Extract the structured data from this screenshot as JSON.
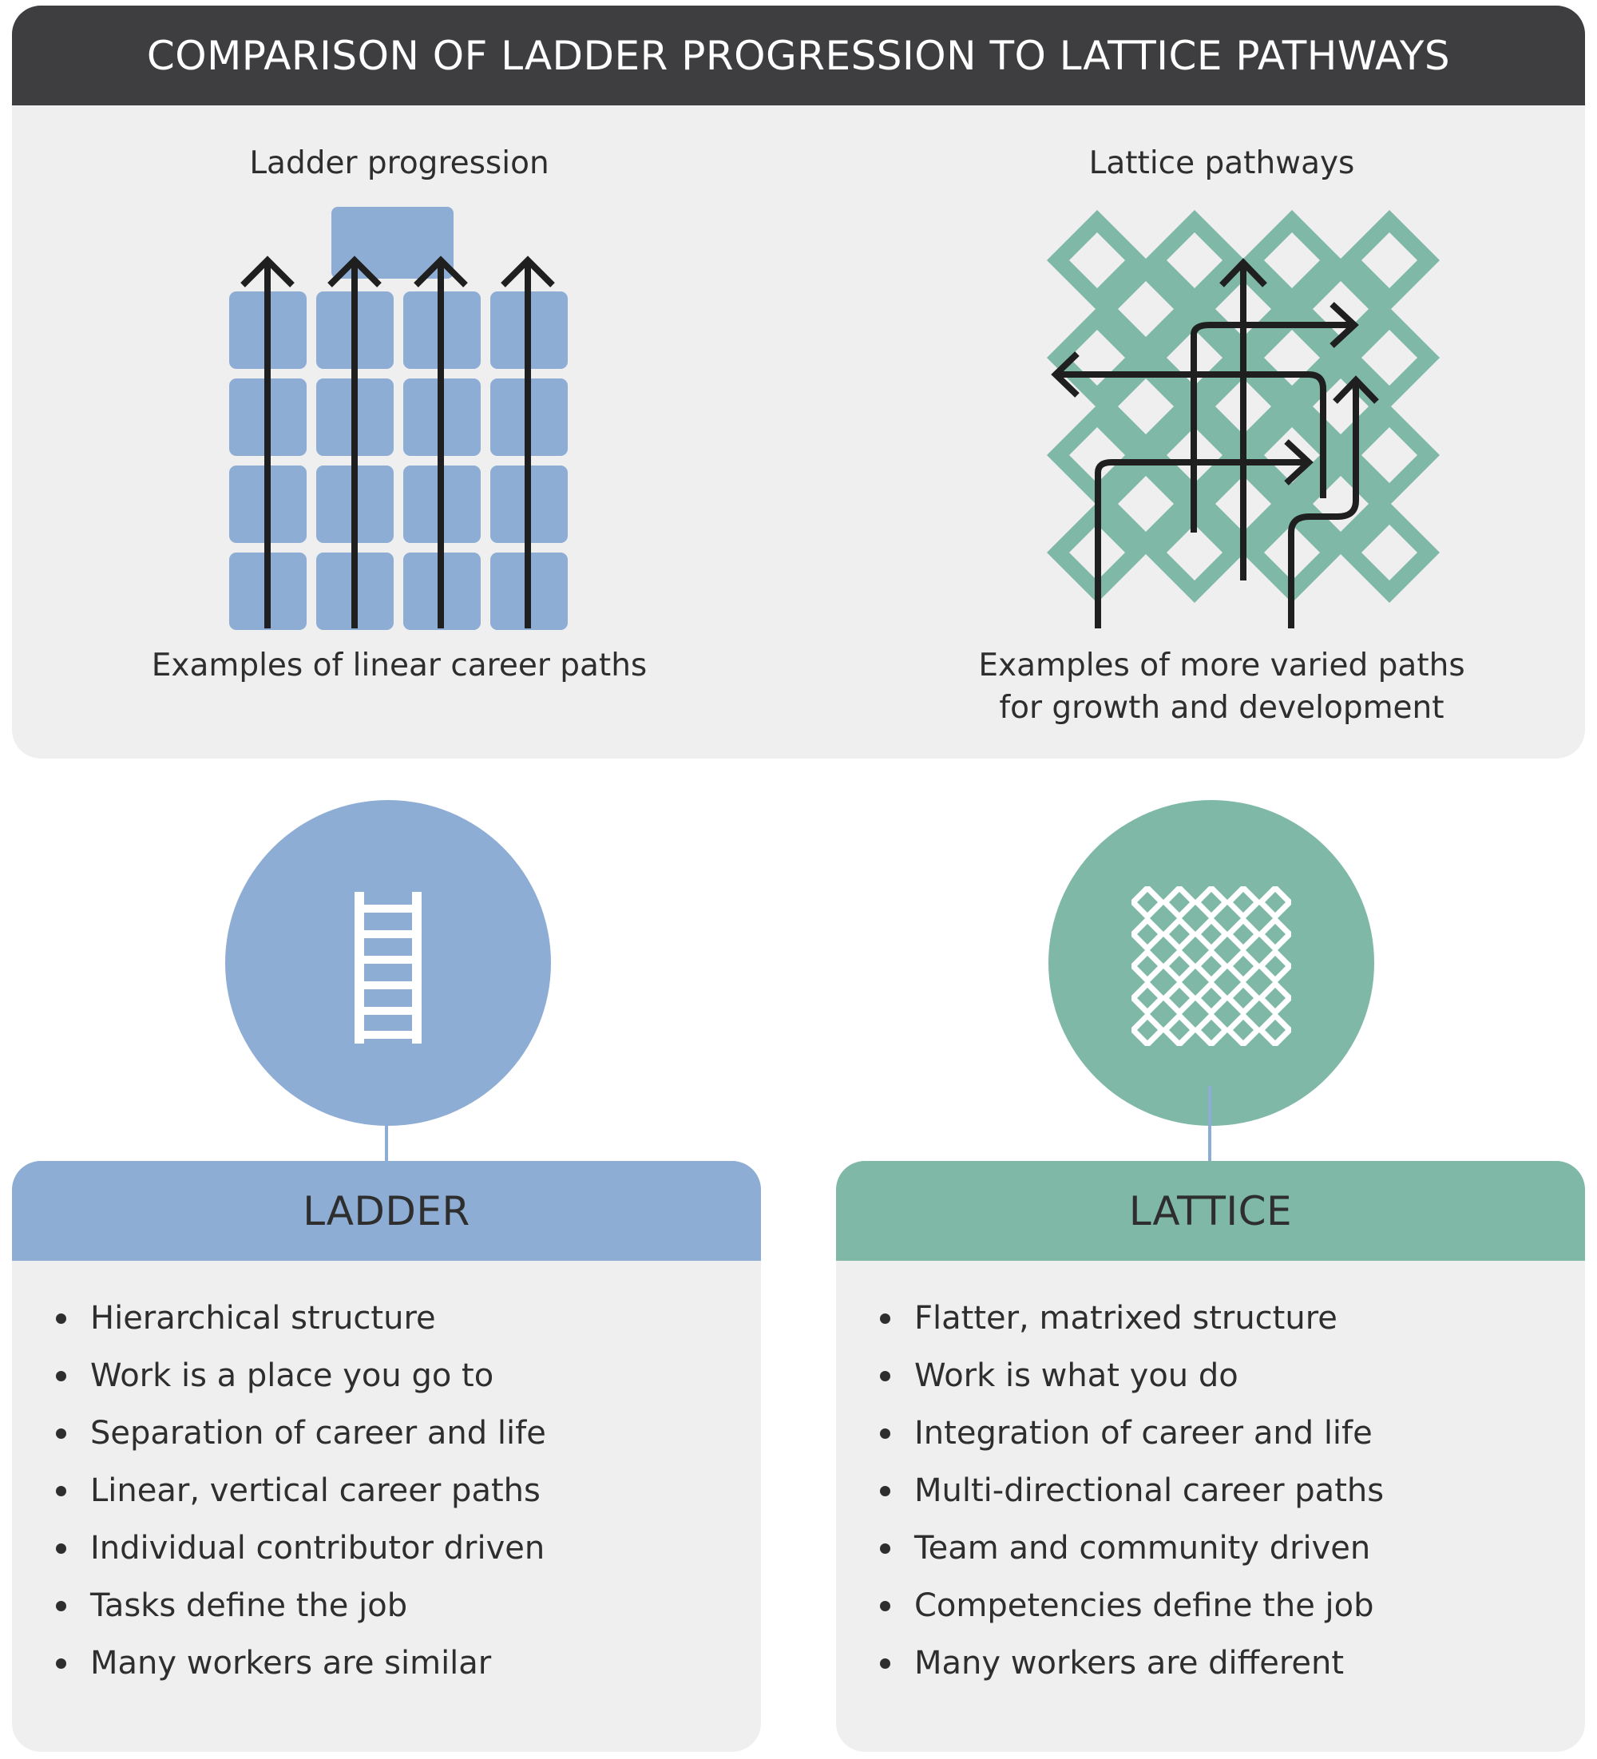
{
  "title": "COMPARISON OF LADDER PROGRESSION TO LATTICE PATHWAYS",
  "colors": {
    "ladder_blue": "#8dadd4",
    "lattice_green": "#7fb8a7",
    "title_bar": "#3e3e40",
    "panel_bg": "#efefef",
    "arrow": "#1f1f1f"
  },
  "ladder_diagram": {
    "heading": "Ladder progression",
    "caption": "Examples of linear career paths",
    "icon": "grid-with-vertical-arrows"
  },
  "lattice_diagram": {
    "heading": "Lattice pathways",
    "caption_line1": "Examples of more varied paths",
    "caption_line2": "for growth and development",
    "icon": "diamond-lattice-with-multidirectional-arrows"
  },
  "ladder_card": {
    "icon": "ladder-icon",
    "title": "LADDER",
    "items": [
      "Hierarchical structure",
      "Work is a place you go to",
      "Separation of career and life",
      "Linear, vertical career paths",
      "Individual contributor driven",
      "Tasks define the job",
      "Many workers are similar"
    ]
  },
  "lattice_card": {
    "icon": "lattice-icon",
    "title": "LATTICE",
    "items": [
      "Flatter, matrixed structure",
      "Work is what you do",
      "Integration of career and life",
      "Multi-directional career paths",
      "Team and community driven",
      "Competencies define the job",
      "Many workers are different"
    ]
  }
}
